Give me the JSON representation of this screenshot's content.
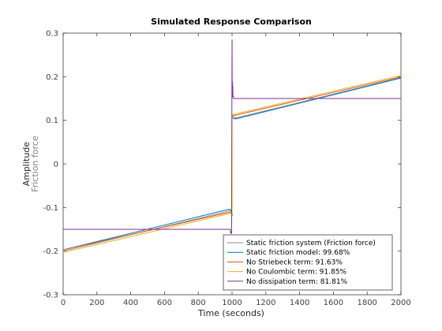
{
  "chart_data": {
    "type": "line",
    "title": "Simulated Response Comparison",
    "xlabel": "Time (seconds)",
    "ylabel": "Amplitude",
    "ylabel_secondary": "Friction force",
    "xlim": [
      0,
      2000
    ],
    "ylim": [
      -0.3,
      0.3
    ],
    "xticks": [
      "0",
      "200",
      "400",
      "600",
      "800",
      "1000",
      "1200",
      "1400",
      "1600",
      "1800",
      "2000"
    ],
    "yticks": [
      "-0.3",
      "-0.2",
      "-0.1",
      "0",
      "0.1",
      "0.2",
      "0.3"
    ],
    "grid": false,
    "legend_position": "bottom-right",
    "series": [
      {
        "name": "Static friction system (Friction force)",
        "color": "#8c8c8c",
        "x": [
          0,
          980,
          990,
          1000,
          1000,
          1005,
          1010,
          1020,
          2000
        ],
        "y": [
          -0.2,
          -0.108,
          -0.105,
          -0.11,
          0.11,
          0.11,
          0.108,
          0.105,
          0.198
        ]
      },
      {
        "name": "Static friction model: 99.68%",
        "color": "#0072bd",
        "x": [
          0,
          970,
          985,
          995,
          1000,
          1000,
          1010,
          1020,
          2000
        ],
        "y": [
          -0.197,
          -0.105,
          -0.104,
          -0.108,
          -0.12,
          0.107,
          0.104,
          0.103,
          0.197
        ]
      },
      {
        "name": "No Striebeck term: 91.63%",
        "color": "#d95319",
        "x": [
          0,
          995,
          1000,
          1000,
          2000
        ],
        "y": [
          -0.197,
          -0.11,
          -0.11,
          0.11,
          0.2
        ]
      },
      {
        "name": "No Coulombic term: 91.85%",
        "color": "#edb120",
        "x": [
          0,
          995,
          1000,
          1000,
          2000
        ],
        "y": [
          -0.203,
          -0.113,
          -0.113,
          0.113,
          0.203
        ]
      },
      {
        "name": "No dissipation term: 81.81%",
        "color": "#7e2f8e",
        "x": [
          0,
          990,
          990,
          993,
          993,
          997,
          998,
          1000,
          1001,
          1002,
          1003,
          1004,
          1005,
          1008,
          1010,
          1012,
          2000
        ],
        "y": [
          -0.15,
          -0.15,
          -0.155,
          -0.16,
          -0.155,
          -0.16,
          0.0,
          0.285,
          0.15,
          0.19,
          0.16,
          0.18,
          0.155,
          0.155,
          0.15,
          0.15,
          0.15
        ]
      }
    ]
  }
}
